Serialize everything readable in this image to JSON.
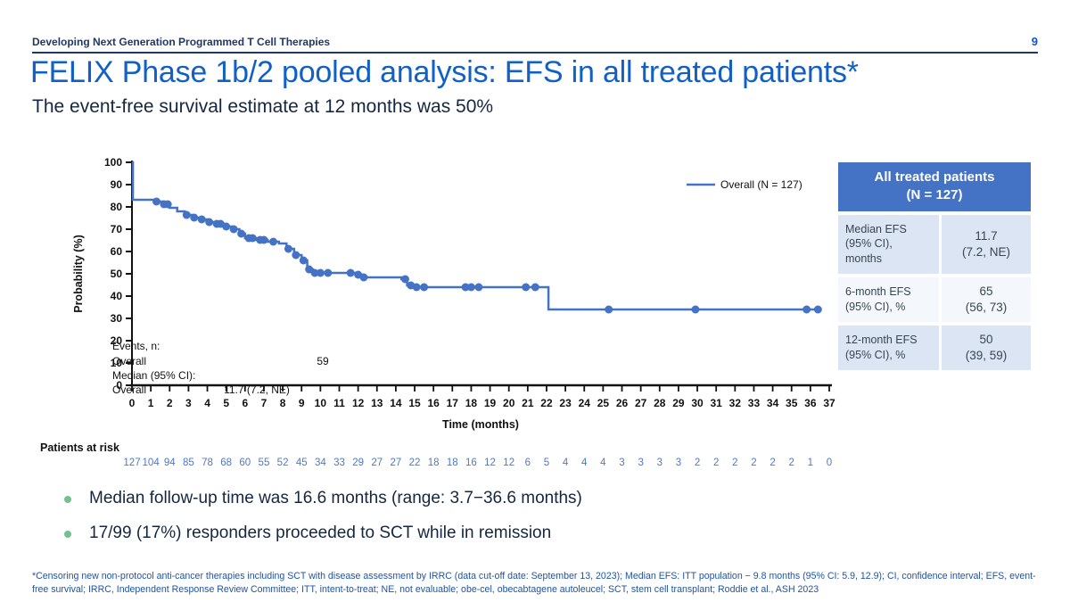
{
  "header": {
    "deck_title": "Developing Next Generation Programmed T Cell Therapies",
    "page_number": "9"
  },
  "title": "FELIX Phase 1b/2 pooled analysis: EFS in all treated patients*",
  "subtitle": "The event-free survival estimate at 12 months was 50%",
  "colors": {
    "curve": "#4472C4",
    "axis": "#111111",
    "navy": "#1F3864",
    "title_blue": "#1160C5",
    "table_header_bg": "#4472C4",
    "row_shaded": "#DBE5F4",
    "row_light": "#F4F8FD",
    "at_risk_numbers": "#4C79C6",
    "bullet_green": "#74C08F",
    "footnote_blue": "#2153A3"
  },
  "chart_data": {
    "type": "line",
    "subtype": "kaplan-meier-step",
    "xlabel": "Time (months)",
    "ylabel": "Probability (%)",
    "xlim": [
      0,
      37
    ],
    "ylim": [
      0,
      100
    ],
    "x_ticks": [
      0,
      1,
      2,
      3,
      4,
      5,
      6,
      7,
      8,
      9,
      10,
      11,
      12,
      13,
      14,
      15,
      16,
      17,
      18,
      19,
      20,
      21,
      22,
      23,
      24,
      25,
      26,
      27,
      28,
      29,
      30,
      31,
      32,
      33,
      34,
      35,
      36,
      37
    ],
    "y_ticks": [
      0,
      10,
      20,
      30,
      40,
      50,
      60,
      70,
      80,
      90,
      100
    ],
    "grid": false,
    "legend_position": "top-right-inside",
    "legend": [
      {
        "label": "Overall (N = 127)",
        "color": "#4472C4"
      }
    ],
    "series": [
      {
        "name": "Overall (N = 127)",
        "steps": [
          [
            0,
            100
          ],
          [
            0.05,
            83.2
          ],
          [
            1.2,
            82.4
          ],
          [
            1.6,
            81.2
          ],
          [
            2.0,
            79.6
          ],
          [
            2.4,
            78.0
          ],
          [
            2.8,
            76.4
          ],
          [
            3.2,
            75.2
          ],
          [
            3.6,
            74.4
          ],
          [
            4.0,
            73.2
          ],
          [
            4.4,
            72.4
          ],
          [
            4.9,
            71.2
          ],
          [
            5.3,
            70.0
          ],
          [
            5.7,
            68.0
          ],
          [
            6.0,
            66.0
          ],
          [
            6.6,
            65.2
          ],
          [
            7.2,
            64.4
          ],
          [
            7.8,
            63.6
          ],
          [
            8.2,
            61.2
          ],
          [
            8.6,
            58.4
          ],
          [
            9.0,
            56.0
          ],
          [
            9.3,
            52.0
          ],
          [
            9.6,
            50.4
          ],
          [
            11.9,
            49.6
          ],
          [
            12.2,
            48.4
          ],
          [
            14.3,
            47.6
          ],
          [
            14.6,
            44.8
          ],
          [
            15.0,
            44.0
          ],
          [
            22.1,
            34.0
          ],
          [
            36.6,
            34.0
          ]
        ],
        "censor_marks": [
          [
            1.3,
            82.4
          ],
          [
            1.7,
            81.2
          ],
          [
            1.9,
            81.2
          ],
          [
            2.9,
            76.4
          ],
          [
            3.3,
            75.2
          ],
          [
            3.7,
            74.4
          ],
          [
            4.1,
            73.2
          ],
          [
            4.5,
            72.4
          ],
          [
            4.7,
            72.4
          ],
          [
            5.0,
            71.2
          ],
          [
            5.4,
            70.0
          ],
          [
            5.8,
            68.0
          ],
          [
            6.2,
            66.0
          ],
          [
            6.4,
            66.0
          ],
          [
            6.8,
            65.2
          ],
          [
            7.0,
            65.2
          ],
          [
            7.5,
            64.4
          ],
          [
            8.3,
            61.2
          ],
          [
            8.7,
            58.4
          ],
          [
            9.1,
            56.0
          ],
          [
            9.4,
            52.0
          ],
          [
            9.7,
            50.4
          ],
          [
            10.0,
            50.4
          ],
          [
            10.4,
            50.4
          ],
          [
            11.6,
            50.4
          ],
          [
            12.0,
            49.6
          ],
          [
            12.3,
            48.4
          ],
          [
            14.5,
            47.6
          ],
          [
            14.8,
            44.8
          ],
          [
            15.1,
            44.0
          ],
          [
            15.5,
            44.0
          ],
          [
            17.7,
            44.0
          ],
          [
            18.0,
            44.0
          ],
          [
            18.4,
            44.0
          ],
          [
            20.9,
            44.0
          ],
          [
            21.4,
            44.0
          ],
          [
            25.3,
            34.0
          ],
          [
            29.9,
            34.0
          ],
          [
            35.8,
            34.0
          ],
          [
            36.4,
            34.0
          ]
        ]
      }
    ],
    "annotation": {
      "events_label": "Events, n:",
      "events_row_label": "Overall",
      "events_row_value": "59",
      "median_label": "Median (95% CI):",
      "median_row_label": "Overall",
      "median_row_value": "11.7 (7.2, NE)"
    },
    "at_risk": {
      "label": "Patients at risk",
      "values": [
        127,
        104,
        94,
        85,
        78,
        68,
        60,
        55,
        52,
        45,
        34,
        33,
        29,
        27,
        27,
        22,
        18,
        18,
        16,
        12,
        12,
        6,
        5,
        4,
        4,
        4,
        3,
        3,
        3,
        3,
        2,
        2,
        2,
        2,
        2,
        2,
        1,
        0
      ]
    }
  },
  "summary_table": {
    "header_lines": [
      "All treated patients",
      "(N = 127)"
    ],
    "rows": [
      {
        "label_lines": [
          "Median EFS",
          "(95% CI),",
          "months"
        ],
        "value_lines": [
          "11.7",
          "(7.2, NE)"
        ],
        "shaded": true
      },
      {
        "label_lines": [
          "6-month EFS",
          "(95% CI), %"
        ],
        "value_lines": [
          "65",
          "(56, 73)"
        ],
        "shaded": false
      },
      {
        "label_lines": [
          "12-month EFS",
          "(95% CI), %"
        ],
        "value_lines": [
          "50",
          "(39, 59)"
        ],
        "shaded": true
      }
    ]
  },
  "bullets": [
    "Median follow-up time was 16.6 months (range: 3.7−36.6 months)",
    "17/99 (17%) responders proceeded to SCT while in remission"
  ],
  "footnote": "*Censoring new non-protocol anti-cancer therapies including SCT with disease assessment by IRRC (data cut-off date: September 13, 2023); Median EFS: ITT population − 9.8 months (95% CI: 5.9, 12.9); CI, confidence interval; EFS, event-free survival; IRRC, Independent Response Review Committee; ITT, intent-to-treat; NE, not evaluable; obe-cel, obecabtagene autoleucel; SCT, stem cell transplant; Roddie et al., ASH 2023"
}
